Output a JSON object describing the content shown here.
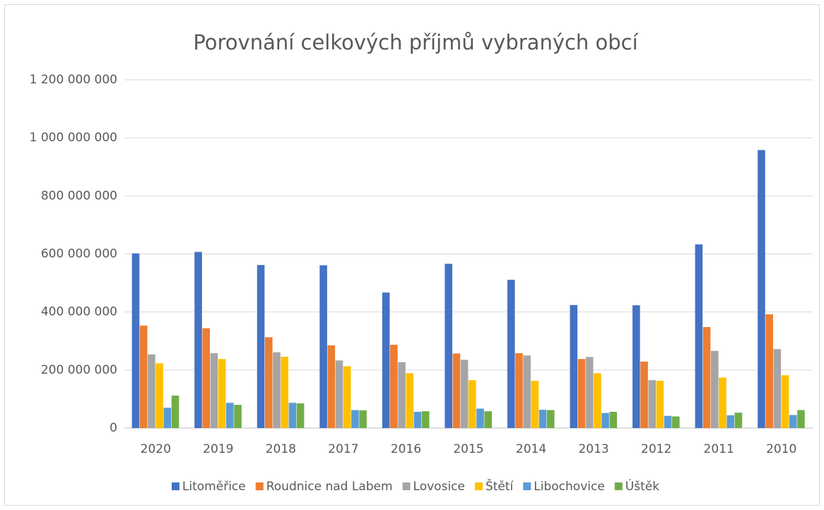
{
  "chart_data": {
    "type": "bar",
    "title": "Porovnání celkových příjmů vybraných obcí",
    "categories": [
      "2020",
      "2019",
      "2018",
      "2017",
      "2016",
      "2015",
      "2014",
      "2013",
      "2012",
      "2011",
      "2010"
    ],
    "series": [
      {
        "name": "Litoměřice",
        "color": "#4472c4",
        "values": [
          602000000,
          607000000,
          562000000,
          561000000,
          467000000,
          566000000,
          511000000,
          424000000,
          423000000,
          633000000,
          958000000
        ]
      },
      {
        "name": "Roudnice nad Labem",
        "color": "#ed7d31",
        "values": [
          353000000,
          344000000,
          313000000,
          285000000,
          287000000,
          257000000,
          258000000,
          238000000,
          229000000,
          348000000,
          392000000
        ]
      },
      {
        "name": "Lovosice",
        "color": "#a5a5a5",
        "values": [
          254000000,
          258000000,
          261000000,
          233000000,
          227000000,
          235000000,
          250000000,
          245000000,
          165000000,
          266000000,
          272000000
        ]
      },
      {
        "name": "Štětí",
        "color": "#ffc000",
        "values": [
          223000000,
          238000000,
          246000000,
          213000000,
          189000000,
          165000000,
          163000000,
          189000000,
          163000000,
          174000000,
          182000000
        ]
      },
      {
        "name": "Libochovice",
        "color": "#5b9bd5",
        "values": [
          70000000,
          87000000,
          87000000,
          62000000,
          56000000,
          67000000,
          63000000,
          52000000,
          42000000,
          44000000,
          45000000
        ]
      },
      {
        "name": "Úštěk",
        "color": "#70ad47",
        "values": [
          112000000,
          80000000,
          85000000,
          61000000,
          58000000,
          58000000,
          62000000,
          56000000,
          40000000,
          53000000,
          62000000
        ]
      }
    ],
    "ylim": [
      0,
      1200000000
    ],
    "yticks": [
      0,
      {
        "value": 200000000,
        "label": "200 000 000"
      },
      {
        "value": 400000000,
        "label": "400 000 000"
      },
      {
        "value": 600000000,
        "label": "600 000 000"
      },
      {
        "value": 800000000,
        "label": "800 000 000"
      },
      {
        "value": 1000000000,
        "label": "1 000 000 000"
      },
      {
        "value": 1200000000,
        "label": "1 200 000 000"
      }
    ],
    "grid": true,
    "legend": "bottom"
  }
}
